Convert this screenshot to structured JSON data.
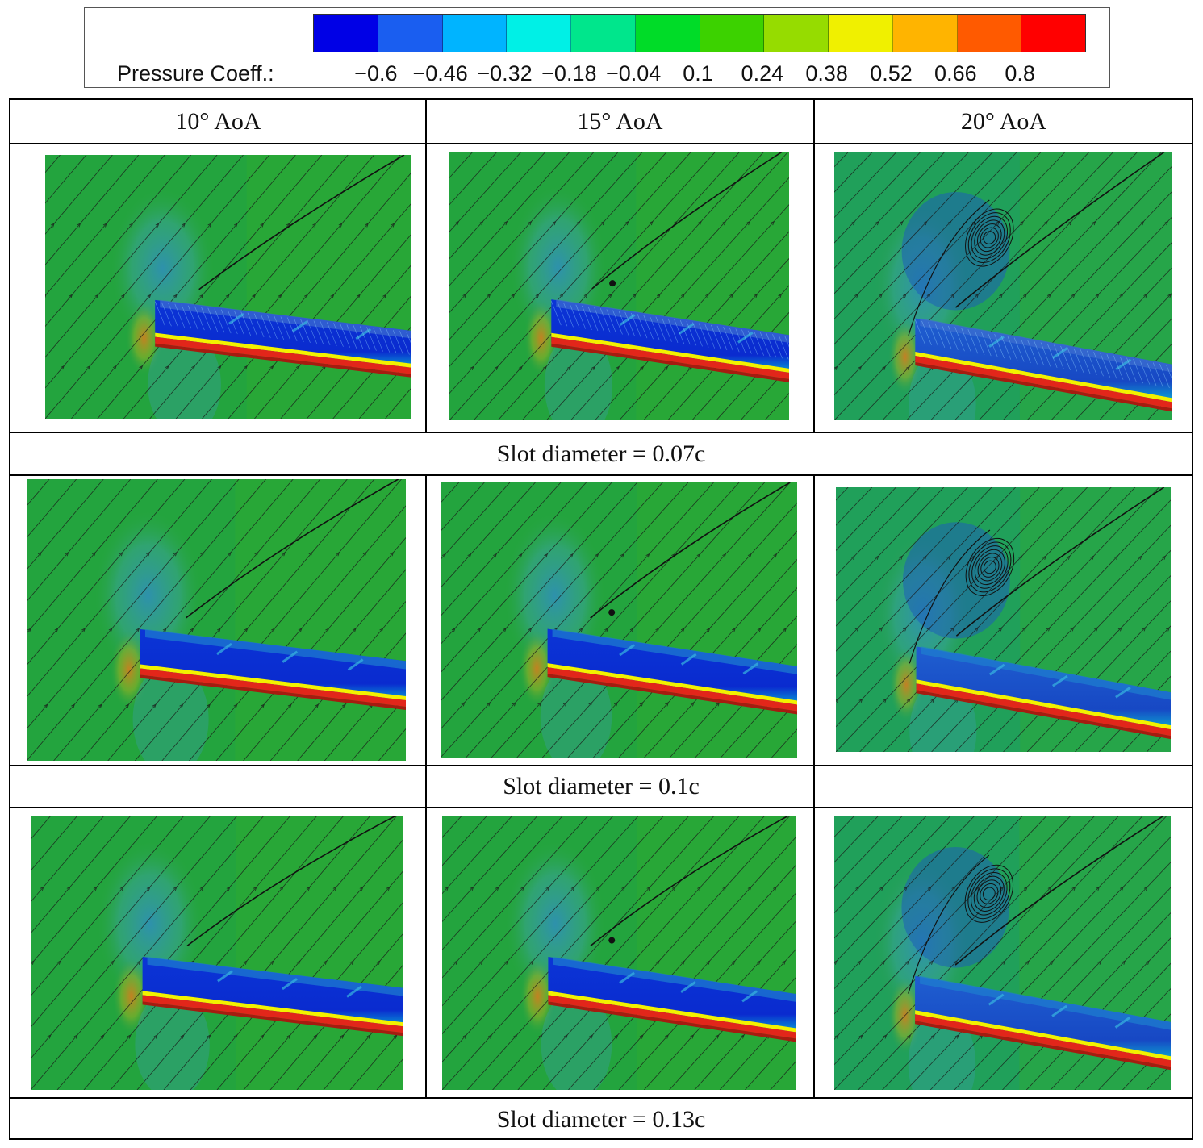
{
  "legend": {
    "title": "Pressure Coeff.:",
    "ticks": [
      "−0.6",
      "−0.46",
      "−0.32",
      "−0.18",
      "−0.04",
      "0.1",
      "0.24",
      "0.38",
      "0.52",
      "0.66",
      "0.8"
    ],
    "colors": [
      "#0000e6",
      "#1a5ef0",
      "#00b4ff",
      "#00f0e6",
      "#00e68c",
      "#00dc28",
      "#3cd200",
      "#96dc00",
      "#f0f000",
      "#ffb400",
      "#ff5a00",
      "#ff0000"
    ]
  },
  "columns": [
    {
      "label": "10° AoA",
      "alpha": 10
    },
    {
      "label": "15° AoA",
      "alpha": 15
    },
    {
      "label": "20° AoA",
      "alpha": 20
    }
  ],
  "rows": [
    {
      "caption": "Slot diameter = 0.07c"
    },
    {
      "caption": "Slot diameter = 0.1c"
    },
    {
      "caption": "Slot diameter = 0.13c"
    }
  ]
}
